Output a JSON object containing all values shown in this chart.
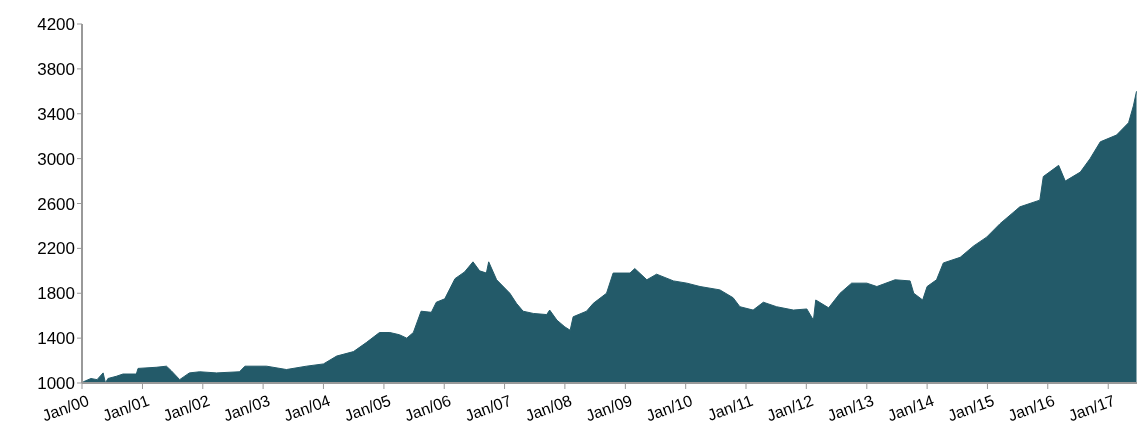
{
  "chart_data": {
    "type": "area",
    "color": "#235a69",
    "x": [
      "2000-01-08",
      "2000-02-24",
      "2000-04-01",
      "2000-05-08",
      "2000-05-22",
      "2000-06-06",
      "2000-07-27",
      "2000-09-05",
      "2000-11-25",
      "2000-12-05",
      "2001-03-25",
      "2001-05-26",
      "2001-06-24",
      "2001-08-14",
      "2001-10-12",
      "2001-12-13",
      "2002-03-25",
      "2002-08-11",
      "2002-09-13",
      "2003-01-22",
      "2003-05-22",
      "2003-09-20",
      "2004-01-01",
      "2004-03-21",
      "2004-07-01",
      "2004-09-16",
      "2004-12-05",
      "2005-02-06",
      "2005-04-05",
      "2005-05-19",
      "2005-06-28",
      "2005-08-14",
      "2005-10-15",
      "2005-11-14",
      "2006-01-04",
      "2006-03-07",
      "2006-05-04",
      "2006-06-24",
      "2006-08-03",
      "2006-09-13",
      "2006-09-27",
      "2006-11-14",
      "2007-02-02",
      "2007-03-14",
      "2007-04-23",
      "2007-06-24",
      "2007-09-13",
      "2007-10-01",
      "2007-11-14",
      "2008-01-01",
      "2008-02-02",
      "2008-02-20",
      "2008-05-11",
      "2008-06-21",
      "2008-09-09",
      "2008-10-19",
      "2009-01-29",
      "2009-02-27",
      "2009-05-11",
      "2009-07-09",
      "2009-10-19",
      "2010-01-08",
      "2010-03-29",
      "2010-07-27",
      "2010-10-15",
      "2010-11-25",
      "2011-02-13",
      "2011-04-16",
      "2011-07-05",
      "2011-10-15",
      "2012-01-04",
      "2012-02-13",
      "2012-02-27",
      "2012-05-15",
      "2012-07-23",
      "2012-10-01",
      "2013-01-01",
      "2013-03-03",
      "2013-06-21",
      "2013-09-20",
      "2013-10-12",
      "2013-12-05",
      "2014-01-01",
      "2014-02-27",
      "2014-04-09",
      "2014-07-20",
      "2014-10-08",
      "2014-12-27",
      "2015-03-18",
      "2015-07-16",
      "2015-11-14",
      "2015-12-05",
      "2016-03-07",
      "2016-04-16",
      "2016-07-16",
      "2016-09-13",
      "2016-11-14",
      "2017-02-20",
      "2017-05-04",
      "2017-06-02",
      "2017-06-21"
    ],
    "values": [
      1010,
      1040,
      1030,
      1090,
      1000,
      1040,
      1060,
      1080,
      1080,
      1130,
      1140,
      1150,
      1110,
      1030,
      1090,
      1100,
      1090,
      1100,
      1150,
      1150,
      1120,
      1150,
      1170,
      1240,
      1280,
      1360,
      1450,
      1450,
      1430,
      1400,
      1450,
      1640,
      1630,
      1720,
      1750,
      1930,
      1990,
      2080,
      2000,
      1980,
      2080,
      1920,
      1800,
      1710,
      1640,
      1620,
      1610,
      1650,
      1560,
      1500,
      1470,
      1590,
      1640,
      1710,
      1800,
      1980,
      1980,
      2020,
      1920,
      1970,
      1910,
      1890,
      1860,
      1830,
      1760,
      1680,
      1650,
      1720,
      1680,
      1650,
      1660,
      1560,
      1740,
      1670,
      1800,
      1890,
      1890,
      1860,
      1920,
      1910,
      1800,
      1740,
      1860,
      1920,
      2070,
      2120,
      2220,
      2300,
      2420,
      2570,
      2630,
      2840,
      2940,
      2800,
      2880,
      3000,
      3150,
      3210,
      3320,
      3470,
      3600
    ],
    "xlim": [
      "2000-01-01",
      "2017-06-24"
    ],
    "xticks": [
      {
        "value": "2000-01",
        "label": "Jan/00"
      },
      {
        "value": "2001-01",
        "label": "Jan/01"
      },
      {
        "value": "2002-01",
        "label": "Jan/02"
      },
      {
        "value": "2003-01",
        "label": "Jan/03"
      },
      {
        "value": "2004-01",
        "label": "Jan/04"
      },
      {
        "value": "2005-01",
        "label": "Jan/05"
      },
      {
        "value": "2006-01",
        "label": "Jan/06"
      },
      {
        "value": "2007-01",
        "label": "Jan/07"
      },
      {
        "value": "2008-01",
        "label": "Jan/08"
      },
      {
        "value": "2009-01",
        "label": "Jan/09"
      },
      {
        "value": "2010-01",
        "label": "Jan/10"
      },
      {
        "value": "2011-01",
        "label": "Jan/11"
      },
      {
        "value": "2012-01",
        "label": "Jan/12"
      },
      {
        "value": "2013-01",
        "label": "Jan/13"
      },
      {
        "value": "2014-01",
        "label": "Jan/14"
      },
      {
        "value": "2015-01",
        "label": "Jan/15"
      },
      {
        "value": "2016-01",
        "label": "Jan/16"
      },
      {
        "value": "2017-01",
        "label": "Jan/17"
      }
    ],
    "ylim": [
      1000,
      4200
    ],
    "yticks": [
      1000,
      1400,
      1800,
      2200,
      2600,
      3000,
      3400,
      3800,
      4200
    ]
  }
}
